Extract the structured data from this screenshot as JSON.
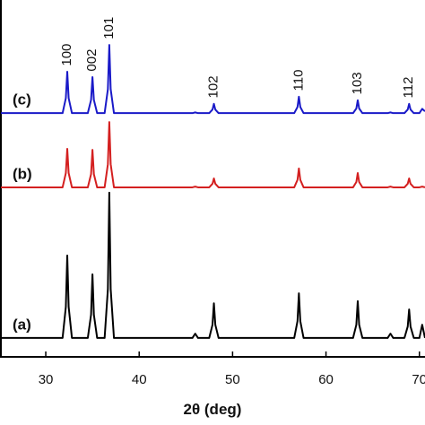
{
  "chart_data": {
    "type": "line",
    "x_label": "2θ (deg)",
    "x": [
      25.2,
      31.8,
      32.15,
      32.3,
      32.45,
      32.8,
      34.5,
      34.85,
      35.0,
      35.15,
      35.5,
      36.3,
      36.65,
      36.8,
      36.95,
      37.3,
      45.7,
      46.0,
      46.3,
      47.5,
      47.85,
      48.0,
      48.15,
      48.5,
      56.6,
      56.95,
      57.1,
      57.25,
      57.6,
      62.9,
      63.25,
      63.4,
      63.55,
      63.9,
      66.6,
      66.9,
      67.2,
      68.4,
      68.75,
      68.9,
      69.05,
      69.4,
      70.0,
      70.3,
      70.6
    ],
    "series": [
      {
        "name": "(a)",
        "color": "#000000",
        "values": [
          5.3,
          5.3,
          14,
          28.4,
          14,
          5.3,
          5.3,
          11.8,
          23.1,
          11.8,
          5.3,
          5.3,
          19,
          46,
          19,
          5.3,
          5.3,
          6.5,
          5.3,
          5.3,
          9,
          15,
          9,
          5.3,
          5.3,
          10,
          17.8,
          10,
          5.3,
          5.3,
          9,
          15.6,
          9,
          5.3,
          5.3,
          6.5,
          5.3,
          5.3,
          8.5,
          13.3,
          8.5,
          5.3,
          5.3,
          9,
          5.3
        ]
      },
      {
        "name": "(b)",
        "color": "#d42020",
        "values": [
          47.5,
          47.5,
          51.5,
          58.3,
          51.5,
          47.5,
          47.5,
          51.2,
          58,
          51.2,
          47.5,
          47.5,
          54,
          65.8,
          54,
          47.5,
          47.5,
          47.7,
          47.5,
          47.5,
          48.5,
          50,
          48.5,
          47.5,
          47.5,
          49.6,
          52.8,
          49.6,
          47.5,
          47.5,
          49,
          51.5,
          49,
          47.5,
          47.5,
          47.7,
          47.5,
          47.5,
          48.5,
          50,
          48.5,
          47.5,
          47.5,
          47.7,
          47.5
        ]
      },
      {
        "name": "(c)",
        "color": "#1a1ac8",
        "values": [
          68.3,
          68.3,
          72.5,
          79.9,
          72.5,
          68.3,
          68.3,
          72,
          78.4,
          72,
          68.3,
          68.3,
          75,
          87.4,
          75,
          68.3,
          68.3,
          68.5,
          68.3,
          68.3,
          69.3,
          70.9,
          69.3,
          68.3,
          68.3,
          70,
          72.9,
          70,
          68.3,
          68.3,
          69.6,
          71.9,
          69.6,
          68.3,
          68.3,
          68.5,
          68.3,
          68.3,
          69.3,
          70.9,
          69.3,
          68.3,
          68.3,
          69.5,
          68.8
        ]
      }
    ],
    "annotations": [
      {
        "text": "100",
        "x": 32.3,
        "y": 81.5
      },
      {
        "text": "002",
        "x": 35.0,
        "y": 80
      },
      {
        "text": "101",
        "x": 36.8,
        "y": 89
      },
      {
        "text": "102",
        "x": 48.0,
        "y": 72.5
      },
      {
        "text": "110",
        "x": 57.1,
        "y": 74.5
      },
      {
        "text": "103",
        "x": 63.4,
        "y": 73.5
      },
      {
        "text": "112",
        "x": 68.9,
        "y": 72.5
      }
    ],
    "xlim": [
      25.1,
      70.6
    ],
    "xticks": [
      30,
      40,
      50,
      60,
      70
    ],
    "ylim": [
      0,
      100
    ]
  }
}
